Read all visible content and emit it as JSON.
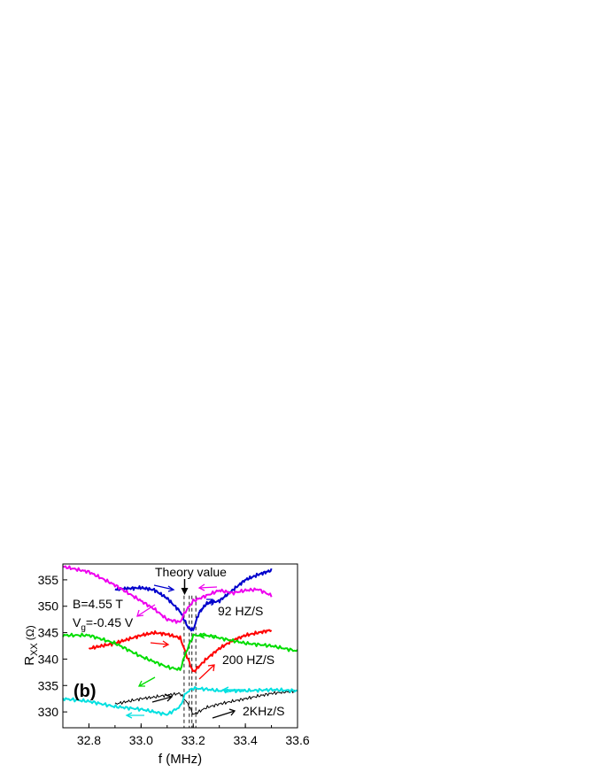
{
  "chart_data": {
    "type": "line",
    "title": "",
    "panel_label": "(b)",
    "xlabel": "f (MHz)",
    "ylabel": "R",
    "ylabel_sub": "XX",
    "ylabel_unit": "(Ω)",
    "xlim": [
      32.7,
      33.6
    ],
    "ylim": [
      327,
      358
    ],
    "xticks": [
      32.8,
      33.0,
      33.2,
      33.4,
      33.6
    ],
    "xtick_labels": [
      "32.8",
      "33.0",
      "33.2",
      "33.4",
      "33.6"
    ],
    "yticks": [
      330,
      335,
      340,
      345,
      350,
      355
    ],
    "ytick_labels": [
      "330",
      "335",
      "340",
      "345",
      "350",
      "355"
    ],
    "grid": false,
    "annotations": {
      "theory": {
        "text": "Theory value",
        "x": 33.17
      },
      "field": "B=4.55 T",
      "gate_main": "V",
      "gate_sub": "g",
      "gate_value": "=-0.45 V",
      "rate_slow": "92 HZ/S",
      "rate_mid": "200 HZ/S",
      "rate_fast": "2KHz/S"
    },
    "dashed_lines_x": [
      33.165,
      33.185,
      33.195,
      33.21
    ],
    "series": [
      {
        "color": "#0000cc",
        "group": "92 HZ/S",
        "x": [
          32.9,
          33.0,
          33.05,
          33.1,
          33.15,
          33.18,
          33.2,
          33.22,
          33.25,
          33.3,
          33.35,
          33.4,
          33.45,
          33.5
        ],
        "y": [
          353.2,
          353.5,
          353.1,
          351.5,
          349.0,
          346.0,
          345.5,
          348.5,
          350.5,
          351.0,
          353.0,
          355.0,
          356.0,
          356.8
        ]
      },
      {
        "color": "#ee00ee",
        "group": "92 HZ/S",
        "x": [
          32.7,
          32.8,
          32.9,
          33.0,
          33.05,
          33.1,
          33.15,
          33.17,
          33.2,
          33.25,
          33.3,
          33.35,
          33.4,
          33.45,
          33.5
        ],
        "y": [
          357.5,
          356.5,
          354.0,
          351.0,
          349.5,
          347.5,
          347.0,
          349.0,
          351.0,
          352.0,
          353.0,
          352.5,
          353.0,
          353.2,
          352.0
        ]
      },
      {
        "color": "#ff0000",
        "group": "200 HZ/S",
        "x": [
          32.8,
          32.9,
          33.0,
          33.05,
          33.1,
          33.15,
          33.18,
          33.2,
          33.22,
          33.25,
          33.3,
          33.35,
          33.4,
          33.45,
          33.5
        ],
        "y": [
          342.0,
          343.0,
          344.5,
          345.0,
          344.7,
          344.0,
          340.0,
          337.5,
          338.5,
          340.0,
          342.0,
          343.5,
          344.5,
          345.0,
          345.5
        ]
      },
      {
        "color": "#00dd00",
        "group": "200 HZ/S",
        "x": [
          32.7,
          32.8,
          32.9,
          33.0,
          33.05,
          33.1,
          33.15,
          33.17,
          33.2,
          33.25,
          33.3,
          33.4,
          33.5,
          33.6
        ],
        "y": [
          344.5,
          344.5,
          343.0,
          340.5,
          339.5,
          338.5,
          338.0,
          341.0,
          344.5,
          344.5,
          344.0,
          343.0,
          342.5,
          341.5
        ]
      },
      {
        "color": "#000000",
        "group": "2KHz/S",
        "x": [
          32.9,
          33.0,
          33.05,
          33.1,
          33.15,
          33.18,
          33.2,
          33.22,
          33.25,
          33.3,
          33.35,
          33.4,
          33.45,
          33.5,
          33.6
        ],
        "y": [
          331.5,
          332.5,
          332.8,
          333.2,
          333.5,
          331.5,
          329.5,
          330.0,
          330.8,
          331.5,
          332.0,
          332.5,
          333.0,
          333.5,
          334.0
        ]
      },
      {
        "color": "#00e0e0",
        "group": "2KHz/S",
        "x": [
          32.7,
          32.8,
          32.9,
          33.0,
          33.05,
          33.1,
          33.15,
          33.17,
          33.2,
          33.25,
          33.3,
          33.4,
          33.5,
          33.6
        ],
        "y": [
          332.5,
          332.0,
          331.0,
          330.5,
          330.0,
          329.5,
          331.0,
          333.5,
          334.5,
          334.3,
          334.0,
          334.0,
          334.2,
          334.0
        ]
      }
    ]
  }
}
